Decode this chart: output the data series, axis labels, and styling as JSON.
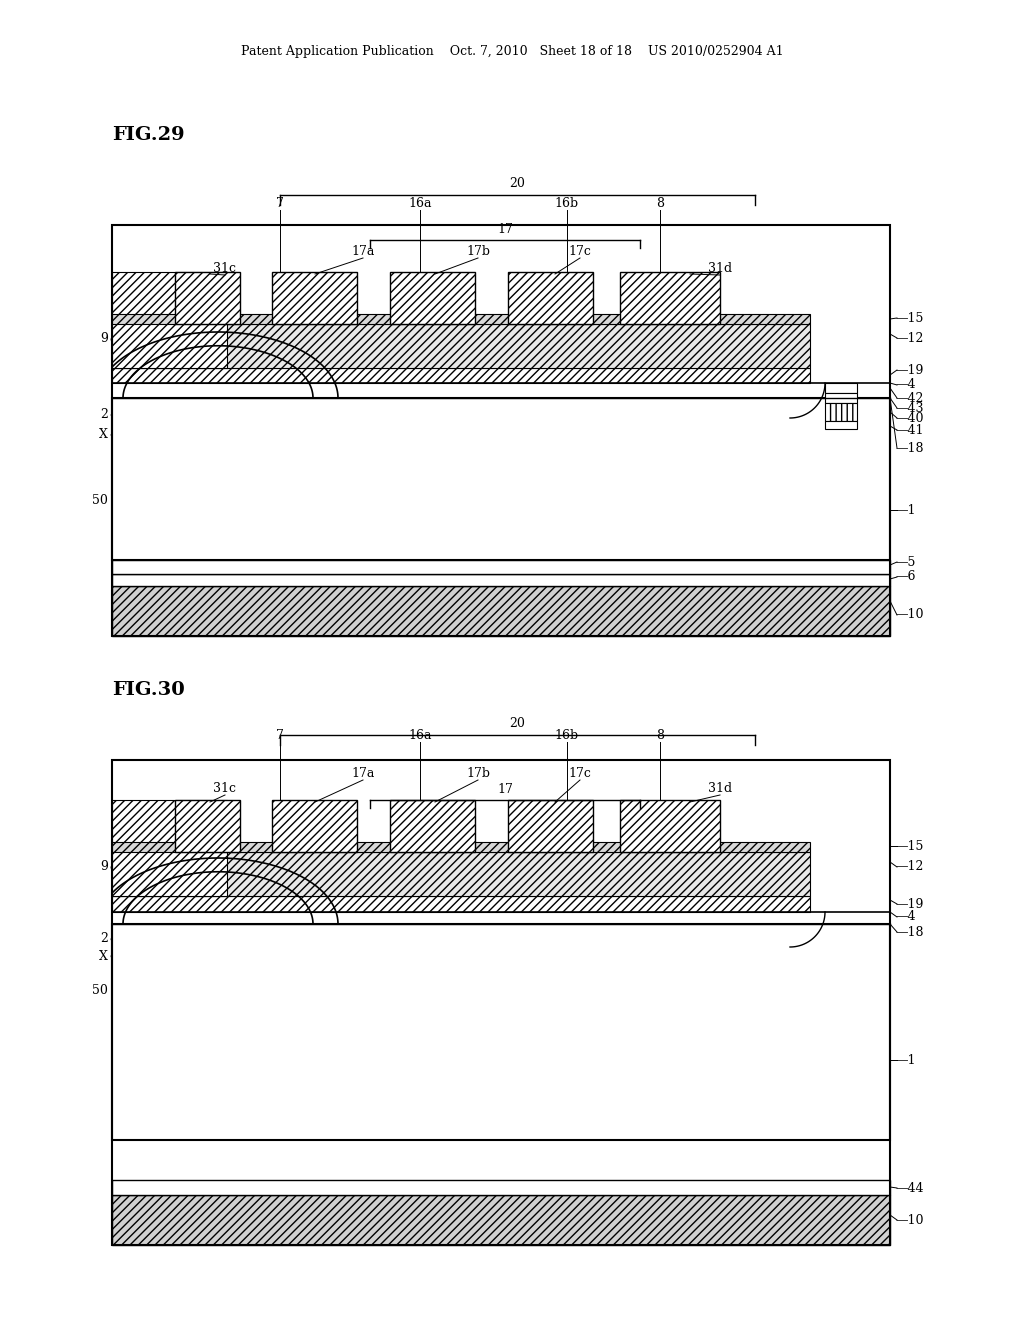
{
  "bg_color": "#ffffff",
  "header_text": "Patent Application Publication    Oct. 7, 2010   Sheet 18 of 18    US 2010/0252904 A1",
  "fig29_title": "FIG.29",
  "fig30_title": "FIG.30",
  "line_color": "#000000"
}
